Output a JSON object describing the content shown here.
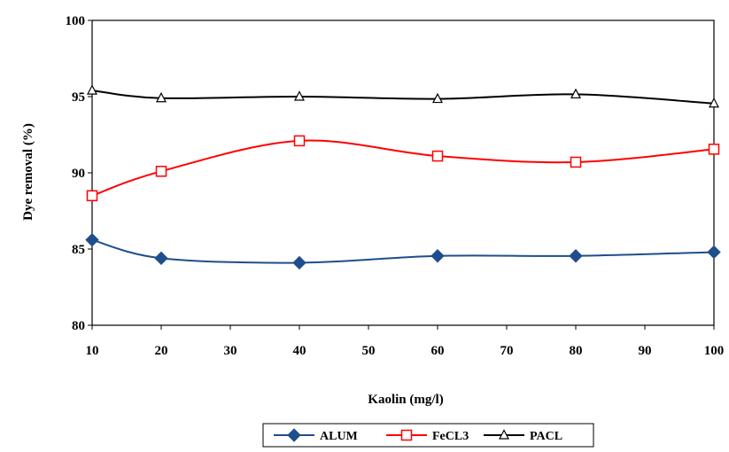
{
  "chart_data": {
    "type": "line",
    "title": "",
    "xlabel": "Kaolin (mg/l)",
    "ylabel": "Dye  removal (%)",
    "xlim": [
      10,
      100
    ],
    "ylim": [
      80,
      100
    ],
    "x_ticks": [
      10,
      20,
      30,
      40,
      50,
      60,
      70,
      80,
      90,
      100
    ],
    "y_ticks": [
      80,
      85,
      90,
      95,
      100
    ],
    "grid": false,
    "legend_position": "bottom-center",
    "series": [
      {
        "name": "ALUM",
        "color": "#1f4e8c",
        "marker": "diamond",
        "x": [
          10,
          20,
          40,
          60,
          80,
          100
        ],
        "y": [
          85.6,
          84.4,
          84.1,
          84.55,
          84.55,
          84.8
        ]
      },
      {
        "name": "FeCL3",
        "color": "#ff0000",
        "marker": "square-open",
        "x": [
          10,
          20,
          40,
          60,
          80,
          100
        ],
        "y": [
          88.5,
          90.1,
          92.1,
          91.1,
          90.7,
          91.55
        ]
      },
      {
        "name": "PACL",
        "color": "#000000",
        "marker": "triangle-open",
        "x": [
          10,
          20,
          40,
          60,
          80,
          100
        ],
        "y": [
          95.4,
          94.9,
          95.0,
          94.85,
          95.15,
          94.55
        ]
      }
    ]
  }
}
